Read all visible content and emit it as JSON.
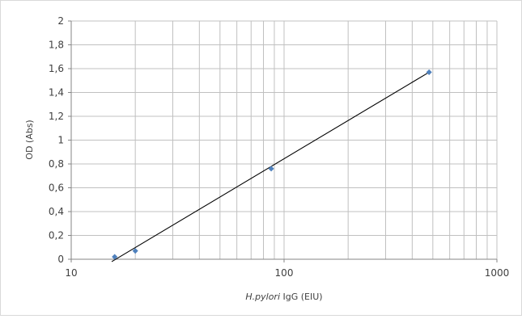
{
  "chart_data": {
    "type": "scatter",
    "title": "",
    "xlabel_italic": "H.pylori",
    "xlabel_rest": " IgG (EIU)",
    "ylabel": "OD (Abs)",
    "x_scale": "log10",
    "xlim": [
      10,
      1000
    ],
    "ylim": [
      0,
      2
    ],
    "x_ticks": [
      10,
      100,
      1000
    ],
    "x_tick_labels": [
      "10",
      "100",
      "1000"
    ],
    "y_ticks": [
      0,
      0.2,
      0.4,
      0.6,
      0.8,
      1,
      1.2,
      1.4,
      1.6,
      1.8,
      2
    ],
    "y_tick_labels": [
      "0",
      "0,2",
      "0,4",
      "0,6",
      "0,8",
      "1",
      "1,2",
      "1,4",
      "1,6",
      "1,8",
      "2"
    ],
    "grid": true,
    "legend": "none",
    "series": [
      {
        "points": [
          {
            "x": 16,
            "y": 0.02
          },
          {
            "x": 20,
            "y": 0.07
          },
          {
            "x": 87,
            "y": 0.76
          },
          {
            "x": 480,
            "y": 1.57
          }
        ],
        "marker_color": "#4f81bd"
      }
    ],
    "trendline": {
      "type": "logarithmic",
      "x_start": 15.5,
      "x_end": 480,
      "y_at_start": -0.02,
      "y_at_end": 1.57,
      "color": "#000000"
    },
    "colors": {
      "grid": "#c0c0c0",
      "axis": "#868686",
      "marker": "#4f81bd",
      "trendline": "#000000"
    }
  }
}
